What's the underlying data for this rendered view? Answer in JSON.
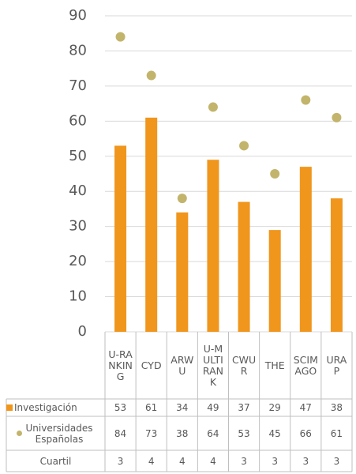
{
  "chart_data": {
    "type": "bar",
    "categories": [
      "U-RANKING",
      "CYD",
      "ARWU",
      "U-MULTIRANK",
      "CWUR",
      "THE",
      "SCIMAGO",
      "URAP"
    ],
    "series": [
      {
        "name": "Investigación",
        "type": "bar",
        "color": "#f0961c",
        "values": [
          53,
          61,
          34,
          49,
          37,
          29,
          47,
          38
        ]
      },
      {
        "name": "Universidades Españolas",
        "type": "scatter",
        "color": "#c3b46c",
        "values": [
          84,
          73,
          38,
          64,
          53,
          45,
          66,
          61
        ]
      },
      {
        "name": "Cuartil",
        "type": "table",
        "values": [
          3,
          4,
          4,
          4,
          3,
          3,
          3,
          3
        ]
      }
    ],
    "ylim": [
      0,
      90
    ],
    "yticks": [
      0,
      10,
      20,
      30,
      40,
      50,
      60,
      70,
      80,
      90
    ],
    "grid": true,
    "data_table": true
  }
}
